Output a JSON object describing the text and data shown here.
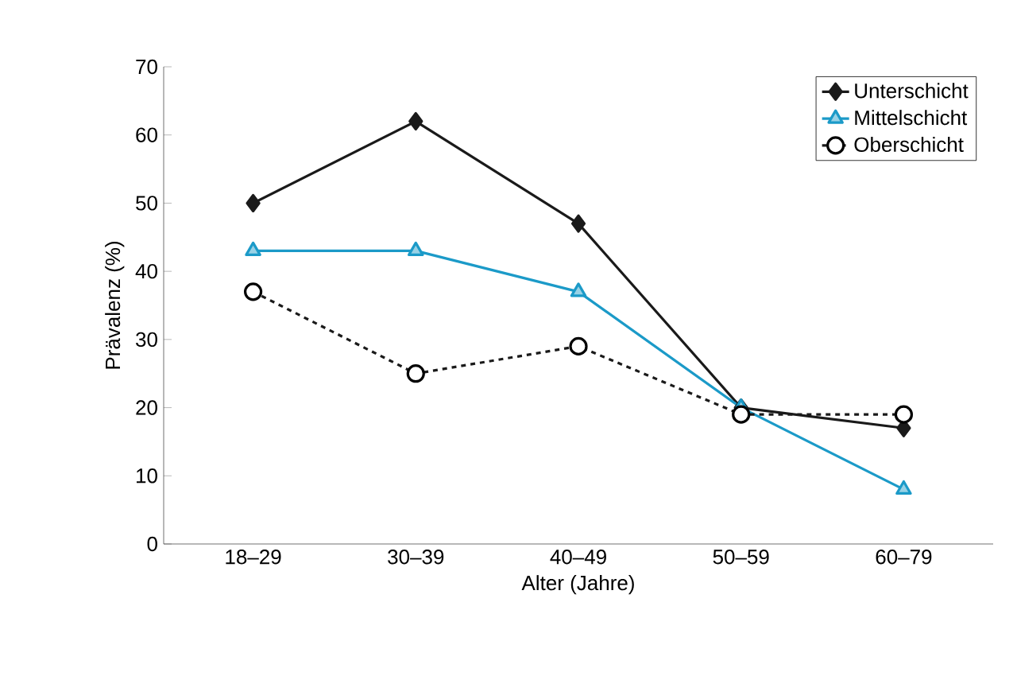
{
  "chart_data": {
    "type": "line",
    "xlabel": "Alter (Jahre)",
    "ylabel": "Prävalenz (%)",
    "categories": [
      "18–29",
      "30–39",
      "40–49",
      "50–59",
      "60–79"
    ],
    "series": [
      {
        "name": "Unterschicht",
        "color": "#1a1a1a",
        "values": [
          50,
          62,
          47,
          20,
          17
        ],
        "marker": "diamond",
        "line_style": "solid"
      },
      {
        "name": "Mittelschicht",
        "color": "#1b9ac8",
        "values": [
          43,
          43,
          37,
          20,
          8
        ],
        "marker": "triangle",
        "line_style": "solid"
      },
      {
        "name": "Oberschicht",
        "color": "#1a1a1a",
        "values": [
          37,
          25,
          29,
          19,
          19
        ],
        "marker": "circle",
        "line_style": "dashed"
      }
    ],
    "ylim": [
      0,
      70
    ],
    "yticks": [
      0,
      10,
      20,
      30,
      40,
      50,
      60,
      70
    ],
    "grid": false,
    "legend": "top right"
  }
}
